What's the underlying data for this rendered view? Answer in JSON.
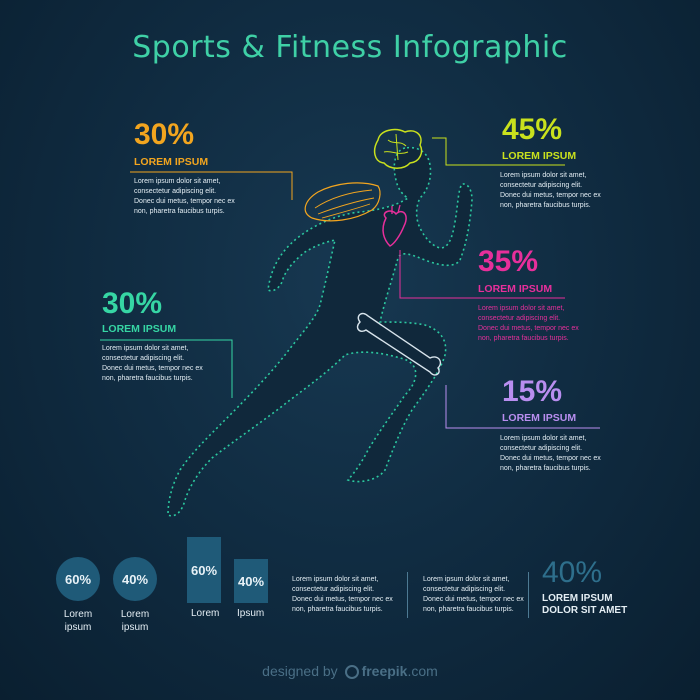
{
  "title": "Sports & Fitness Infographic",
  "callouts": [
    {
      "id": "brain-left",
      "percent": "30%",
      "label": "LOREM IPSUM",
      "color": "#f2a51f",
      "text": [
        "Lorem ipsum dolor sit amet,",
        "consectetur adipiscing elit.",
        "Donec dui metus, tempor nec ex",
        "non, pharetra faucibus turpis."
      ]
    },
    {
      "id": "brain-right",
      "percent": "45%",
      "label": "LOREM IPSUM",
      "color": "#c9e11d",
      "text": [
        "Lorem ipsum dolor sit amet,",
        "consectetur adipiscing elit.",
        "Donec dui metus, tempor nec ex",
        "non, pharetra faucibus turpis."
      ]
    },
    {
      "id": "heart",
      "percent": "35%",
      "label": "LOREM IPSUM",
      "color": "#e72f9b",
      "text": [
        "Lorem ipsum dolor sit amet,",
        "consectetur adipiscing elit.",
        "Donec dui metus, tempor nec ex",
        "non, pharetra faucibus turpis."
      ]
    },
    {
      "id": "skin",
      "percent": "30%",
      "label": "LOREM IPSUM",
      "color": "#36d6a4",
      "text": [
        "Lorem ipsum dolor sit amet,",
        "consectetur adipiscing elit.",
        "Donec dui metus, tempor nec ex",
        "non, pharetra faucibus turpis."
      ]
    },
    {
      "id": "bone",
      "percent": "15%",
      "label": "LOREM IPSUM",
      "color": "#b98ef0",
      "text": [
        "Lorem ipsum dolor sit amet,",
        "consectetur adipiscing elit.",
        "Donec dui metus, tempor nec ex",
        "non, pharetra faucibus turpis."
      ]
    }
  ],
  "stats": {
    "circles": [
      {
        "value": "60%",
        "label_1": "Lorem",
        "label_2": "ipsum"
      },
      {
        "value": "40%",
        "label_1": "Lorem",
        "label_2": "ipsum"
      }
    ],
    "bars": [
      {
        "value": "60%",
        "label": "Lorem",
        "fraction": 0.6
      },
      {
        "value": "40%",
        "label": "Ipsum",
        "fraction": 0.4
      }
    ],
    "texts": [
      [
        "Lorem ipsum dolor sit amet,",
        "consectetur adipiscing elit.",
        "Donec dui metus, tempor nec ex",
        "non, pharetra faucibus turpis."
      ],
      [
        "Lorem ipsum dolor sit amet,",
        "consectetur adipiscing elit.",
        "Donec dui metus, tempor nec ex",
        "non, pharetra faucibus turpis."
      ]
    ],
    "big": {
      "value": "40%",
      "line_1": "LOREM IPSUM",
      "line_2": "DOLOR SIT AMET"
    }
  },
  "footer": {
    "prefix": "designed by",
    "brand": "freepik",
    "suffix": ".com"
  },
  "colors": {
    "accent_teal": "#36d6a4",
    "bar_fill": "#1f5a78",
    "figure_outline": "#2cc9a0"
  }
}
